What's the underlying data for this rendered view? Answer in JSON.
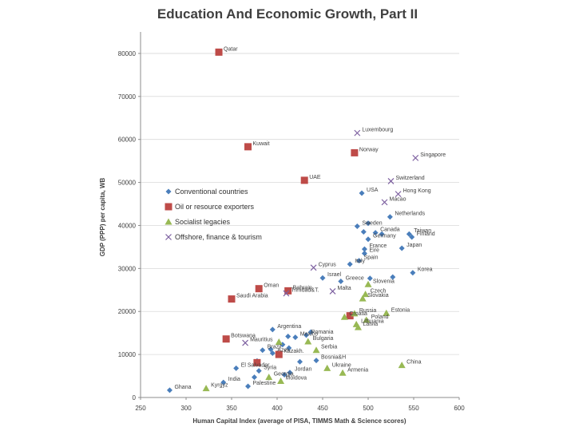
{
  "chart_data": {
    "type": "scatter",
    "title": "Education And Economic Growth, Part II",
    "xlabel": "Human Capital Index (average of PISA, TIMMS Math & Science scores)",
    "ylabel": "GDP (PPP) per capita, WB",
    "xlim": [
      250,
      600
    ],
    "ylim": [
      0,
      85000
    ],
    "xticks": [
      250,
      300,
      350,
      400,
      450,
      500,
      550,
      600
    ],
    "yticks": [
      0,
      10000,
      20000,
      30000,
      40000,
      50000,
      60000,
      70000,
      80000
    ],
    "grid": true,
    "legend_position": "left",
    "colors": {
      "conventional": "#4a7ebb",
      "oil": "#be4b48",
      "socialist": "#98b954",
      "offshore": "#7d60a0"
    },
    "series": [
      {
        "name": "Conventional countries",
        "key": "conventional",
        "marker": "diamond",
        "points": [
          {
            "x": 493,
            "y": 47500,
            "label": "USA"
          },
          {
            "x": 524,
            "y": 42000,
            "label": "Netherlands"
          },
          {
            "x": 488,
            "y": 39800,
            "label": "Sweden"
          },
          {
            "x": 500,
            "y": 40500,
            "label": ""
          },
          {
            "x": 495,
            "y": 38500,
            "label": ""
          },
          {
            "x": 508,
            "y": 38300,
            "label": "Canada"
          },
          {
            "x": 515,
            "y": 38000,
            "label": ""
          },
          {
            "x": 545,
            "y": 38000,
            "label": "Taiwan"
          },
          {
            "x": 548,
            "y": 37300,
            "label": "Finland"
          },
          {
            "x": 500,
            "y": 36800,
            "label": "Germany"
          },
          {
            "x": 496,
            "y": 34500,
            "label": "France"
          },
          {
            "x": 537,
            "y": 34700,
            "label": "Japan"
          },
          {
            "x": 496,
            "y": 33500,
            "label": "Eire"
          },
          {
            "x": 490,
            "y": 31800,
            "label": "Spain"
          },
          {
            "x": 480,
            "y": 31000,
            "label": "Italy"
          },
          {
            "x": 549,
            "y": 29000,
            "label": "Korea"
          },
          {
            "x": 450,
            "y": 27800,
            "label": "Israel"
          },
          {
            "x": 470,
            "y": 27000,
            "label": "Greece"
          },
          {
            "x": 502,
            "y": 27700,
            "label": ""
          },
          {
            "x": 527,
            "y": 28000,
            "label": ""
          },
          {
            "x": 395,
            "y": 15800,
            "label": "Argentina"
          },
          {
            "x": 420,
            "y": 14000,
            "label": "Mexico"
          },
          {
            "x": 412,
            "y": 14200,
            "label": ""
          },
          {
            "x": 432,
            "y": 14500,
            "label": "Romania"
          },
          {
            "x": 437,
            "y": 15200,
            "label": ""
          },
          {
            "x": 384,
            "y": 11000,
            "label": "Brazil"
          },
          {
            "x": 393,
            "y": 11200,
            "label": ""
          },
          {
            "x": 406,
            "y": 12300,
            "label": ""
          },
          {
            "x": 413,
            "y": 11500,
            "label": ""
          },
          {
            "x": 378,
            "y": 8500,
            "label": ""
          },
          {
            "x": 355,
            "y": 6800,
            "label": "El Salvador"
          },
          {
            "x": 395,
            "y": 10300,
            "label": "Azer."
          },
          {
            "x": 425,
            "y": 8300,
            "label": ""
          },
          {
            "x": 443,
            "y": 8600,
            "label": "Bosnia&H"
          },
          {
            "x": 408,
            "y": 5300,
            "label": ""
          },
          {
            "x": 414,
            "y": 5800,
            "label": "Jordan"
          },
          {
            "x": 380,
            "y": 6200,
            "label": "Syria"
          },
          {
            "x": 375,
            "y": 4700,
            "label": ""
          },
          {
            "x": 341,
            "y": 3500,
            "label": "India"
          },
          {
            "x": 368,
            "y": 2600,
            "label": "Palestine"
          },
          {
            "x": 282,
            "y": 1700,
            "label": "Ghana"
          }
        ]
      },
      {
        "name": "Oil or resource exporters",
        "key": "oil",
        "marker": "square",
        "points": [
          {
            "x": 336,
            "y": 80300,
            "label": "Qatar"
          },
          {
            "x": 368,
            "y": 58300,
            "label": "Kuwait"
          },
          {
            "x": 485,
            "y": 56900,
            "label": "Norway"
          },
          {
            "x": 430,
            "y": 50500,
            "label": "UAE"
          },
          {
            "x": 380,
            "y": 25300,
            "label": "Oman"
          },
          {
            "x": 412,
            "y": 24800,
            "label": "Bahrain"
          },
          {
            "x": 350,
            "y": 22900,
            "label": "Saudi Arabia"
          },
          {
            "x": 344,
            "y": 13600,
            "label": "Botswana"
          },
          {
            "x": 402,
            "y": 10000,
            "label": "Kazakh."
          },
          {
            "x": 480,
            "y": 19000,
            "label": ""
          },
          {
            "x": 378,
            "y": 8100,
            "label": ""
          }
        ]
      },
      {
        "name": "Socialist legacies",
        "key": "socialist",
        "marker": "triangle",
        "points": [
          {
            "x": 500,
            "y": 26300,
            "label": "Slovenia"
          },
          {
            "x": 497,
            "y": 24000,
            "label": "Czech"
          },
          {
            "x": 494,
            "y": 23000,
            "label": "Slovakia"
          },
          {
            "x": 520,
            "y": 19600,
            "label": "Estonia"
          },
          {
            "x": 485,
            "y": 19500,
            "label": "Russia"
          },
          {
            "x": 474,
            "y": 18700,
            "label": "Croatia"
          },
          {
            "x": 498,
            "y": 18000,
            "label": "Poland"
          },
          {
            "x": 487,
            "y": 17000,
            "label": "Lithuania"
          },
          {
            "x": 489,
            "y": 16300,
            "label": "Latvia"
          },
          {
            "x": 434,
            "y": 13000,
            "label": "Bulgaria"
          },
          {
            "x": 402,
            "y": 12900,
            "label": ""
          },
          {
            "x": 443,
            "y": 11000,
            "label": "Serbia"
          },
          {
            "x": 455,
            "y": 6800,
            "label": "Ukraine"
          },
          {
            "x": 472,
            "y": 5700,
            "label": "Armenia"
          },
          {
            "x": 537,
            "y": 7500,
            "label": "China"
          },
          {
            "x": 404,
            "y": 3800,
            "label": "Moldova"
          },
          {
            "x": 391,
            "y": 4700,
            "label": "Georgia"
          },
          {
            "x": 322,
            "y": 2100,
            "label": "Kyrgyz"
          }
        ]
      },
      {
        "name": "Offshore, finance & tourism",
        "key": "offshore",
        "marker": "x",
        "points": [
          {
            "x": 488,
            "y": 61500,
            "label": "Luxembourg"
          },
          {
            "x": 552,
            "y": 55700,
            "label": "Singapore"
          },
          {
            "x": 525,
            "y": 50300,
            "label": "Switzerland"
          },
          {
            "x": 533,
            "y": 47300,
            "label": "Hong Kong"
          },
          {
            "x": 518,
            "y": 45400,
            "label": "Macao"
          },
          {
            "x": 440,
            "y": 30200,
            "label": "Cyprus"
          },
          {
            "x": 461,
            "y": 24700,
            "label": "Malta"
          },
          {
            "x": 410,
            "y": 24200,
            "label": "Trinidad&T."
          },
          {
            "x": 365,
            "y": 12700,
            "label": "Mauritius"
          }
        ]
      }
    ]
  }
}
